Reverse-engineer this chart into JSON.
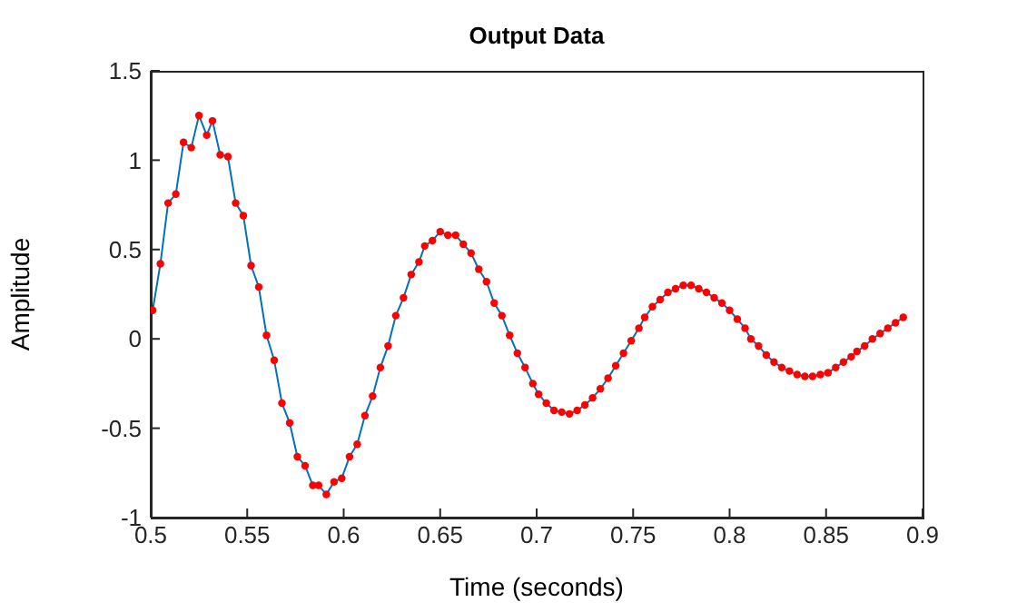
{
  "chart_data": {
    "type": "line",
    "title": "Output Data",
    "xlabel": "Time (seconds)",
    "ylabel": "Amplitude",
    "x": [
      0.501,
      0.505,
      0.509,
      0.513,
      0.517,
      0.521,
      0.525,
      0.529,
      0.532,
      0.536,
      0.54,
      0.544,
      0.548,
      0.552,
      0.556,
      0.56,
      0.564,
      0.568,
      0.572,
      0.576,
      0.58,
      0.584,
      0.587,
      0.591,
      0.595,
      0.599,
      0.603,
      0.607,
      0.611,
      0.615,
      0.619,
      0.623,
      0.627,
      0.631,
      0.635,
      0.639,
      0.642,
      0.646,
      0.65,
      0.654,
      0.658,
      0.662,
      0.666,
      0.67,
      0.674,
      0.678,
      0.682,
      0.686,
      0.69,
      0.694,
      0.698,
      0.701,
      0.705,
      0.709,
      0.713,
      0.717,
      0.721,
      0.725,
      0.729,
      0.733,
      0.737,
      0.741,
      0.745,
      0.749,
      0.753,
      0.756,
      0.76,
      0.764,
      0.768,
      0.772,
      0.776,
      0.78,
      0.784,
      0.788,
      0.792,
      0.796,
      0.8,
      0.804,
      0.808,
      0.811,
      0.815,
      0.819,
      0.823,
      0.827,
      0.831,
      0.835,
      0.839,
      0.843,
      0.847,
      0.851,
      0.855,
      0.859,
      0.863,
      0.866,
      0.87,
      0.874,
      0.878,
      0.882,
      0.886,
      0.89
    ],
    "series": [
      {
        "color": "#0072bd",
        "marker": "none",
        "values": [
          0.16,
          0.42,
          0.76,
          0.81,
          1.1,
          1.07,
          1.25,
          1.14,
          1.22,
          1.03,
          1.02,
          0.76,
          0.69,
          0.41,
          0.29,
          0.02,
          -0.12,
          -0.36,
          -0.47,
          -0.66,
          -0.71,
          -0.82,
          -0.82,
          -0.87,
          -0.8,
          -0.78,
          -0.66,
          -0.59,
          -0.43,
          -0.32,
          -0.16,
          -0.04,
          0.13,
          0.23,
          0.36,
          0.43,
          0.52,
          0.55,
          0.6,
          0.58,
          0.58,
          0.53,
          0.48,
          0.39,
          0.32,
          0.2,
          0.13,
          0.02,
          -0.08,
          -0.16,
          -0.25,
          -0.31,
          -0.36,
          -0.4,
          -0.41,
          -0.42,
          -0.4,
          -0.37,
          -0.33,
          -0.28,
          -0.22,
          -0.15,
          -0.08,
          -0.01,
          0.06,
          0.12,
          0.18,
          0.22,
          0.26,
          0.28,
          0.3,
          0.3,
          0.28,
          0.26,
          0.23,
          0.2,
          0.16,
          0.11,
          0.06,
          0,
          -0.04,
          -0.09,
          -0.13,
          -0.16,
          -0.18,
          -0.2,
          -0.21,
          -0.21,
          -0.2,
          -0.19,
          -0.16,
          -0.13,
          -0.1,
          -0.07,
          -0.04,
          0,
          0.03,
          0.06,
          0.09,
          0.12
        ]
      },
      {
        "type": "scatter",
        "color": "#ff0000",
        "marker": "circle",
        "values": [
          0.16,
          0.42,
          0.76,
          0.81,
          1.1,
          1.07,
          1.25,
          1.14,
          1.22,
          1.03,
          1.02,
          0.76,
          0.69,
          0.41,
          0.29,
          0.02,
          -0.12,
          -0.36,
          -0.47,
          -0.66,
          -0.71,
          -0.82,
          -0.82,
          -0.87,
          -0.8,
          -0.78,
          -0.66,
          -0.59,
          -0.43,
          -0.32,
          -0.16,
          -0.04,
          0.13,
          0.23,
          0.36,
          0.43,
          0.52,
          0.55,
          0.6,
          0.58,
          0.58,
          0.53,
          0.48,
          0.39,
          0.32,
          0.2,
          0.13,
          0.02,
          -0.08,
          -0.16,
          -0.25,
          -0.31,
          -0.36,
          -0.4,
          -0.41,
          -0.42,
          -0.4,
          -0.37,
          -0.33,
          -0.28,
          -0.22,
          -0.15,
          -0.08,
          -0.01,
          0.06,
          0.12,
          0.18,
          0.22,
          0.26,
          0.28,
          0.3,
          0.3,
          0.28,
          0.26,
          0.23,
          0.2,
          0.16,
          0.11,
          0.06,
          0,
          -0.04,
          -0.09,
          -0.13,
          -0.16,
          -0.18,
          -0.2,
          -0.21,
          -0.21,
          -0.2,
          -0.19,
          -0.16,
          -0.13,
          -0.1,
          -0.07,
          -0.04,
          0,
          0.03,
          0.06,
          0.09,
          0.12
        ]
      }
    ],
    "xlim": [
      0.5,
      0.9
    ],
    "xticks": [
      0.5,
      0.55,
      0.6,
      0.65,
      0.7,
      0.75,
      0.8,
      0.85,
      0.9
    ],
    "ylim": [
      -1,
      1.5
    ],
    "yticks": [
      -1,
      -0.5,
      0,
      0.5,
      1,
      1.5
    ],
    "grid": false
  }
}
